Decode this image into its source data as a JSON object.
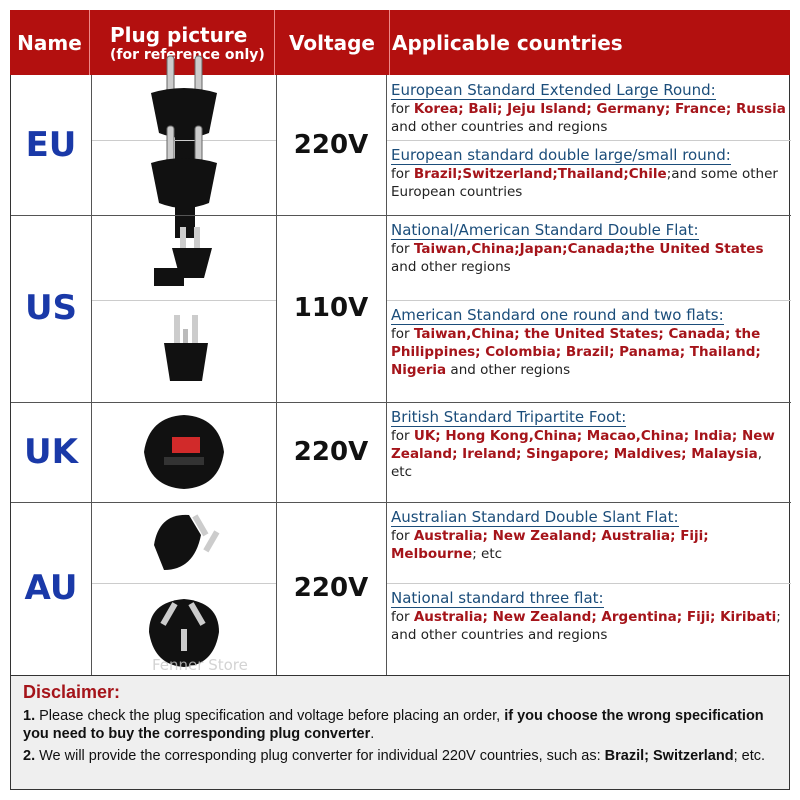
{
  "header": {
    "name": "Name",
    "plug": "Plug picture",
    "plug_sub": "(for reference only)",
    "voltage": "Voltage",
    "countries": "Applicable countries"
  },
  "rows": [
    {
      "name": "EU",
      "voltage": "220V",
      "blocks": [
        {
          "title": "European Standard Extended Large Round:",
          "segs": [
            {
              "t": "for "
            },
            {
              "t": "Korea; Bali;  Jeju Island; Germany; France; Russia",
              "r": true
            },
            {
              "t": " and other countries and regions"
            }
          ]
        },
        {
          "title": "European standard double large/small round:",
          "segs": [
            {
              "t": "for "
            },
            {
              "t": "Brazil;Switzerland;Thailand;Chile",
              "r": true
            },
            {
              "t": ";and some other European countries"
            }
          ]
        }
      ]
    },
    {
      "name": "US",
      "voltage": "110V",
      "blocks": [
        {
          "title": "National/American Standard Double Flat:",
          "segs": [
            {
              "t": "for  "
            },
            {
              "t": "Taiwan,China;Japan;Canada;the United States",
              "r": true
            },
            {
              "t": " and other regions"
            }
          ]
        },
        {
          "title": "American Standard one round and two flats:",
          "segs": [
            {
              "t": "for "
            },
            {
              "t": "Taiwan,China; the United States; Canada; the Philippines; Colombia; Brazil; Panama; Thailand; Nigeria",
              "r": true
            },
            {
              "t": " and other regions"
            }
          ]
        }
      ]
    },
    {
      "name": "UK",
      "voltage": "220V",
      "blocks": [
        {
          "title": "British Standard Tripartite Foot:",
          "segs": [
            {
              "t": "for "
            },
            {
              "t": "UK; Hong Kong,China; Macao,China; India; New Zealand; Ireland; Singapore; Maldives; Malaysia",
              "r": true
            },
            {
              "t": ", etc"
            }
          ]
        }
      ]
    },
    {
      "name": "AU",
      "voltage": "220V",
      "blocks": [
        {
          "title": "Australian Standard Double Slant Flat:",
          "segs": [
            {
              "t": "for "
            },
            {
              "t": "Australia; New Zealand; Australia; Fiji; Melbourne",
              "r": true
            },
            {
              "t": "; etc"
            }
          ]
        },
        {
          "title": "National standard three flat:",
          "segs": [
            {
              "t": "for "
            },
            {
              "t": "Australia; New Zealand; Argentina; Fiji; Kiribati",
              "r": true
            },
            {
              "t": "; and other countries and regions"
            }
          ]
        }
      ]
    }
  ],
  "watermark": "Fenner Store",
  "disclaimer": {
    "title": "Disclaimer:",
    "p1": [
      {
        "t": "1.",
        "b": true
      },
      {
        "t": " Please check the plug specification and voltage before placing an order, "
      },
      {
        "t": "if you choose the wrong specification you need to buy the corresponding plug converter",
        "b": true
      },
      {
        "t": "."
      }
    ],
    "p2": [
      {
        "t": "2.",
        "b": true
      },
      {
        "t": " We will provide the corresponding plug converter for individual 220V countries, such as: "
      },
      {
        "t": "Brazil; Switzerland",
        "b": true
      },
      {
        "t": "; etc."
      }
    ]
  },
  "colors": {
    "header": "#b3100f",
    "name": "#1a39a8",
    "highlight": "#a5141a",
    "title": "#1b4d7a"
  }
}
